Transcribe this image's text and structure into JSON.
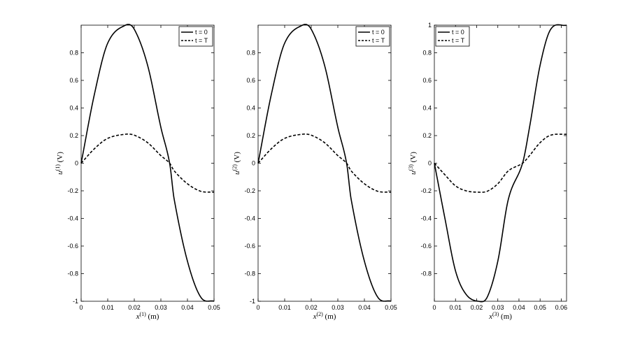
{
  "chart_data": [
    {
      "type": "line",
      "xlabel": "x^(1) (m)",
      "ylabel": "u^(1) (V)",
      "xlim": [
        0,
        0.05
      ],
      "ylim": [
        -1,
        1
      ],
      "xticks": [
        0,
        0.01,
        0.02,
        0.03,
        0.04,
        0.05
      ],
      "xtick_labels": [
        "0",
        "0.01",
        "0.02",
        "0.03",
        "0.04",
        "0.05"
      ],
      "yticks": [
        -1,
        -0.8,
        -0.6,
        -0.4,
        -0.2,
        0,
        0.2,
        0.4,
        0.6,
        0.8
      ],
      "ytick_labels": [
        "-1",
        "-0.8",
        "-0.6",
        "-0.4",
        "-0.2",
        "0",
        "0.2",
        "0.4",
        "0.6",
        "0.8"
      ],
      "legend": "top-right",
      "grid": false,
      "series": [
        {
          "name": "t = 0",
          "style": "solid",
          "x": [
            0,
            0.005,
            0.01,
            0.0167,
            0.02,
            0.025,
            0.03,
            0.0333,
            0.035,
            0.04,
            0.045,
            0.05
          ],
          "y": [
            0,
            0.5,
            0.87,
            1.0,
            0.97,
            0.71,
            0.26,
            0,
            -0.26,
            -0.71,
            -0.97,
            -1.0
          ]
        },
        {
          "name": "t = T",
          "style": "dashed",
          "x": [
            0,
            0.005,
            0.01,
            0.0167,
            0.02,
            0.025,
            0.03,
            0.0333,
            0.035,
            0.04,
            0.045,
            0.05
          ],
          "y": [
            0,
            0.105,
            0.18,
            0.21,
            0.203,
            0.149,
            0.055,
            0,
            -0.055,
            -0.149,
            -0.203,
            -0.21
          ]
        }
      ]
    },
    {
      "type": "line",
      "xlabel": "x^(2) (m)",
      "ylabel": "u^(2) (V)",
      "xlim": [
        0,
        0.05
      ],
      "ylim": [
        -1,
        1
      ],
      "xticks": [
        0,
        0.01,
        0.02,
        0.03,
        0.04,
        0.05
      ],
      "xtick_labels": [
        "0",
        "0.01",
        "0.02",
        "0.03",
        "0.04",
        "0.05"
      ],
      "yticks": [
        -1,
        -0.8,
        -0.6,
        -0.4,
        -0.2,
        0,
        0.2,
        0.4,
        0.6,
        0.8
      ],
      "ytick_labels": [
        "-1",
        "-0.8",
        "-0.6",
        "-0.4",
        "-0.2",
        "0",
        "0.2",
        "0.4",
        "0.6",
        "0.8"
      ],
      "legend": "top-right",
      "grid": false,
      "series": [
        {
          "name": "t = 0",
          "style": "solid",
          "x": [
            0,
            0.005,
            0.01,
            0.0167,
            0.02,
            0.025,
            0.03,
            0.0333,
            0.035,
            0.04,
            0.045,
            0.05
          ],
          "y": [
            0,
            0.5,
            0.87,
            1.0,
            0.97,
            0.71,
            0.26,
            0,
            -0.26,
            -0.71,
            -0.97,
            -1.0
          ]
        },
        {
          "name": "t = T",
          "style": "dashed",
          "x": [
            0,
            0.005,
            0.01,
            0.0167,
            0.02,
            0.025,
            0.03,
            0.0333,
            0.035,
            0.04,
            0.045,
            0.05
          ],
          "y": [
            0,
            0.105,
            0.18,
            0.21,
            0.203,
            0.149,
            0.055,
            0,
            -0.055,
            -0.149,
            -0.203,
            -0.21
          ]
        }
      ]
    },
    {
      "type": "line",
      "xlabel": "x^(3) (m)",
      "ylabel": "u^(3) (V)",
      "xlim": [
        0,
        0.0625
      ],
      "ylim": [
        -1,
        1
      ],
      "xticks": [
        0,
        0.01,
        0.02,
        0.03,
        0.04,
        0.05,
        0.06
      ],
      "xtick_labels": [
        "0",
        "0.01",
        "0.02",
        "0.03",
        "0.04",
        "0.05",
        "0.06"
      ],
      "yticks": [
        -0.8,
        -0.6,
        -0.4,
        -0.2,
        0,
        0.2,
        0.4,
        0.6,
        0.8,
        1
      ],
      "ytick_labels": [
        "-0.8",
        "-0.6",
        "-0.4",
        "-0.2",
        "0",
        "0.2",
        "0.4",
        "0.6",
        "0.8",
        "1"
      ],
      "legend": "top-left",
      "grid": false,
      "series": [
        {
          "name": "t = 0",
          "style": "solid",
          "x": [
            0,
            0.005,
            0.01,
            0.015,
            0.0208,
            0.025,
            0.03,
            0.035,
            0.0417,
            0.045,
            0.05,
            0.055,
            0.0625
          ],
          "y": [
            0,
            -0.4,
            -0.78,
            -0.95,
            -1.0,
            -0.97,
            -0.71,
            -0.26,
            0,
            0.26,
            0.71,
            0.97,
            1.0
          ]
        },
        {
          "name": "t = T",
          "style": "dashed",
          "x": [
            0,
            0.005,
            0.01,
            0.015,
            0.0208,
            0.025,
            0.03,
            0.035,
            0.0417,
            0.045,
            0.05,
            0.055,
            0.0625
          ],
          "y": [
            0,
            -0.084,
            -0.164,
            -0.2,
            -0.21,
            -0.203,
            -0.149,
            -0.055,
            0,
            0.055,
            0.149,
            0.203,
            0.21
          ]
        }
      ]
    }
  ]
}
